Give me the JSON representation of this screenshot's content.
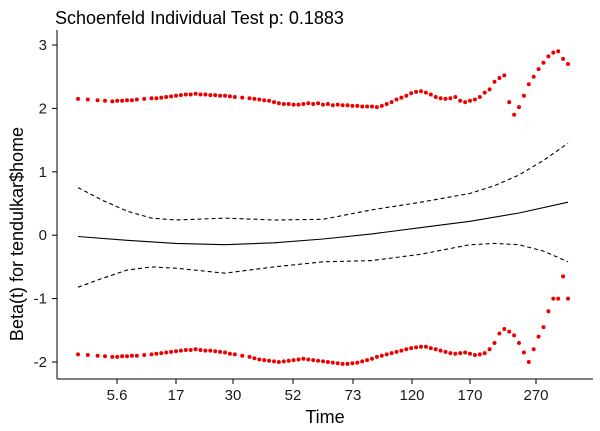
{
  "chart_data": {
    "type": "scatter",
    "title": "Schoenfeld Individual Test p: 0.1883",
    "xlabel": "Time",
    "ylabel": "Beta(t) for tendulkar$home",
    "x_scale": "km",
    "x_ticks": [
      "5.6",
      "17",
      "30",
      "52",
      "73",
      "120",
      "170",
      "270"
    ],
    "ylim": [
      -2.2,
      3.1
    ],
    "y_ticks": [
      -2,
      -1,
      0,
      1,
      2,
      3
    ],
    "grid": false,
    "legend": "none",
    "colors": {
      "points": "#ee0000",
      "lines": "#000000",
      "axis": "#000000"
    },
    "series": [
      {
        "kind": "points",
        "x": [
          0.0,
          0.02,
          0.04,
          0.055,
          0.07,
          0.08,
          0.09,
          0.1,
          0.11,
          0.12,
          0.135,
          0.15,
          0.16,
          0.17,
          0.18,
          0.19,
          0.2,
          0.21,
          0.22,
          0.23,
          0.24,
          0.25,
          0.26,
          0.27,
          0.28,
          0.29,
          0.3,
          0.31,
          0.32,
          0.335,
          0.35,
          0.36,
          0.37,
          0.38,
          0.39,
          0.4,
          0.41,
          0.42,
          0.43,
          0.44,
          0.45,
          0.46,
          0.47,
          0.48,
          0.49,
          0.5,
          0.51,
          0.52,
          0.53,
          0.54,
          0.55,
          0.56,
          0.57,
          0.58,
          0.59,
          0.6,
          0.61,
          0.62,
          0.63,
          0.64,
          0.65,
          0.66,
          0.67,
          0.68,
          0.69,
          0.7,
          0.71,
          0.72,
          0.73,
          0.74,
          0.75,
          0.76,
          0.77,
          0.78,
          0.79,
          0.8,
          0.81,
          0.82,
          0.83,
          0.84,
          0.85,
          0.86,
          0.87,
          0.88,
          0.89,
          0.9,
          0.91,
          0.92,
          0.93,
          0.94,
          0.95,
          0.96,
          0.97,
          0.98,
          0.99,
          1.0
        ],
        "y": [
          2.15,
          2.14,
          2.13,
          2.12,
          2.11,
          2.12,
          2.12,
          2.13,
          2.13,
          2.14,
          2.15,
          2.16,
          2.16,
          2.17,
          2.18,
          2.19,
          2.2,
          2.21,
          2.22,
          2.22,
          2.23,
          2.22,
          2.22,
          2.21,
          2.21,
          2.2,
          2.2,
          2.19,
          2.18,
          2.17,
          2.16,
          2.15,
          2.14,
          2.13,
          2.12,
          2.1,
          2.08,
          2.07,
          2.07,
          2.06,
          2.06,
          2.07,
          2.08,
          2.07,
          2.08,
          2.06,
          2.07,
          2.05,
          2.06,
          2.05,
          2.05,
          2.04,
          2.04,
          2.03,
          2.03,
          2.03,
          2.02,
          2.04,
          2.07,
          2.1,
          2.14,
          2.17,
          2.2,
          2.24,
          2.26,
          2.27,
          2.25,
          2.22,
          2.18,
          2.16,
          2.15,
          2.16,
          2.18,
          2.12,
          2.1,
          2.12,
          2.14,
          2.18,
          2.25,
          2.3,
          2.42,
          2.48,
          2.52,
          2.1,
          1.9,
          2.02,
          2.2,
          2.38,
          2.5,
          2.62,
          2.72,
          2.82,
          2.88,
          2.9,
          2.78,
          2.7
        ]
      },
      {
        "kind": "points",
        "x": [
          0.0,
          0.02,
          0.04,
          0.055,
          0.07,
          0.08,
          0.09,
          0.1,
          0.11,
          0.12,
          0.135,
          0.15,
          0.16,
          0.17,
          0.18,
          0.19,
          0.2,
          0.21,
          0.22,
          0.23,
          0.24,
          0.25,
          0.26,
          0.27,
          0.28,
          0.29,
          0.3,
          0.31,
          0.32,
          0.335,
          0.35,
          0.36,
          0.37,
          0.38,
          0.39,
          0.4,
          0.41,
          0.42,
          0.43,
          0.44,
          0.45,
          0.46,
          0.47,
          0.48,
          0.49,
          0.5,
          0.51,
          0.52,
          0.53,
          0.54,
          0.55,
          0.56,
          0.57,
          0.58,
          0.59,
          0.6,
          0.61,
          0.62,
          0.63,
          0.64,
          0.65,
          0.66,
          0.67,
          0.68,
          0.69,
          0.7,
          0.71,
          0.72,
          0.73,
          0.74,
          0.75,
          0.76,
          0.77,
          0.78,
          0.79,
          0.8,
          0.81,
          0.82,
          0.83,
          0.84,
          0.85,
          0.86,
          0.87,
          0.88,
          0.89,
          0.9,
          0.91,
          0.92,
          0.93,
          0.94,
          0.95,
          0.96,
          0.97,
          0.98,
          0.99,
          1.0
        ],
        "y": [
          -1.88,
          -1.89,
          -1.9,
          -1.91,
          -1.92,
          -1.92,
          -1.91,
          -1.91,
          -1.9,
          -1.9,
          -1.89,
          -1.88,
          -1.87,
          -1.86,
          -1.85,
          -1.84,
          -1.83,
          -1.82,
          -1.81,
          -1.81,
          -1.8,
          -1.81,
          -1.82,
          -1.82,
          -1.83,
          -1.84,
          -1.85,
          -1.87,
          -1.88,
          -1.9,
          -1.92,
          -1.94,
          -1.96,
          -1.97,
          -1.98,
          -1.99,
          -2.0,
          -1.99,
          -1.98,
          -1.97,
          -1.96,
          -1.95,
          -1.96,
          -1.97,
          -1.98,
          -1.99,
          -2.0,
          -2.01,
          -2.02,
          -2.03,
          -2.03,
          -2.02,
          -2.01,
          -1.99,
          -1.97,
          -1.95,
          -1.92,
          -1.9,
          -1.88,
          -1.86,
          -1.84,
          -1.82,
          -1.8,
          -1.78,
          -1.77,
          -1.76,
          -1.76,
          -1.78,
          -1.8,
          -1.82,
          -1.84,
          -1.86,
          -1.87,
          -1.86,
          -1.85,
          -1.87,
          -1.89,
          -1.88,
          -1.86,
          -1.8,
          -1.7,
          -1.55,
          -1.48,
          -1.52,
          -1.58,
          -1.7,
          -1.85,
          -2.0,
          -1.8,
          -1.6,
          -1.45,
          -1.2,
          -1.0,
          -1.0,
          -0.65,
          -1.0
        ]
      },
      {
        "kind": "line",
        "dash": "solid",
        "x": [
          0.0,
          0.1,
          0.2,
          0.3,
          0.4,
          0.5,
          0.6,
          0.7,
          0.8,
          0.9,
          1.0
        ],
        "y": [
          -0.02,
          -0.08,
          -0.13,
          -0.15,
          -0.12,
          -0.06,
          0.02,
          0.12,
          0.22,
          0.35,
          0.52
        ]
      },
      {
        "kind": "line",
        "dash": "dashed",
        "x": [
          0.0,
          0.05,
          0.1,
          0.15,
          0.2,
          0.3,
          0.4,
          0.5,
          0.6,
          0.7,
          0.8,
          0.85,
          0.9,
          0.95,
          1.0
        ],
        "y": [
          0.75,
          0.55,
          0.38,
          0.27,
          0.24,
          0.27,
          0.24,
          0.25,
          0.4,
          0.52,
          0.66,
          0.78,
          0.95,
          1.18,
          1.45
        ]
      },
      {
        "kind": "line",
        "dash": "dashed",
        "x": [
          0.0,
          0.05,
          0.1,
          0.15,
          0.2,
          0.3,
          0.4,
          0.5,
          0.6,
          0.7,
          0.8,
          0.85,
          0.9,
          0.95,
          1.0
        ],
        "y": [
          -0.82,
          -0.68,
          -0.55,
          -0.5,
          -0.52,
          -0.6,
          -0.5,
          -0.42,
          -0.4,
          -0.3,
          -0.15,
          -0.13,
          -0.15,
          -0.25,
          -0.42
        ]
      }
    ]
  }
}
